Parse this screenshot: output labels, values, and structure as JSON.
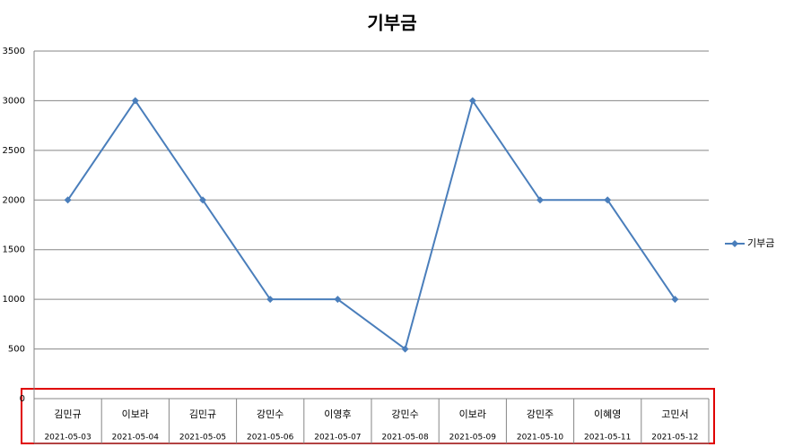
{
  "chart_data": {
    "type": "line",
    "title": "기부금",
    "categories": [
      "김민규",
      "이보라",
      "김민규",
      "강민수",
      "이영후",
      "강민수",
      "이보라",
      "강민주",
      "이혜영",
      "고민서"
    ],
    "dates": [
      "2021-05-03",
      "2021-05-04",
      "2021-05-05",
      "2021-05-06",
      "2021-05-07",
      "2021-05-08",
      "2021-05-09",
      "2021-05-10",
      "2021-05-11",
      "2021-05-12"
    ],
    "series": [
      {
        "name": "기부금",
        "color": "#4a7ebb",
        "values": [
          2000,
          3000,
          2000,
          1000,
          1000,
          500,
          3000,
          2000,
          2000,
          1000
        ]
      }
    ],
    "ylim": [
      0,
      3500
    ],
    "yticks": [
      0,
      500,
      1000,
      1500,
      2000,
      2500,
      3000,
      3500
    ],
    "grid": true,
    "legend": "right"
  }
}
